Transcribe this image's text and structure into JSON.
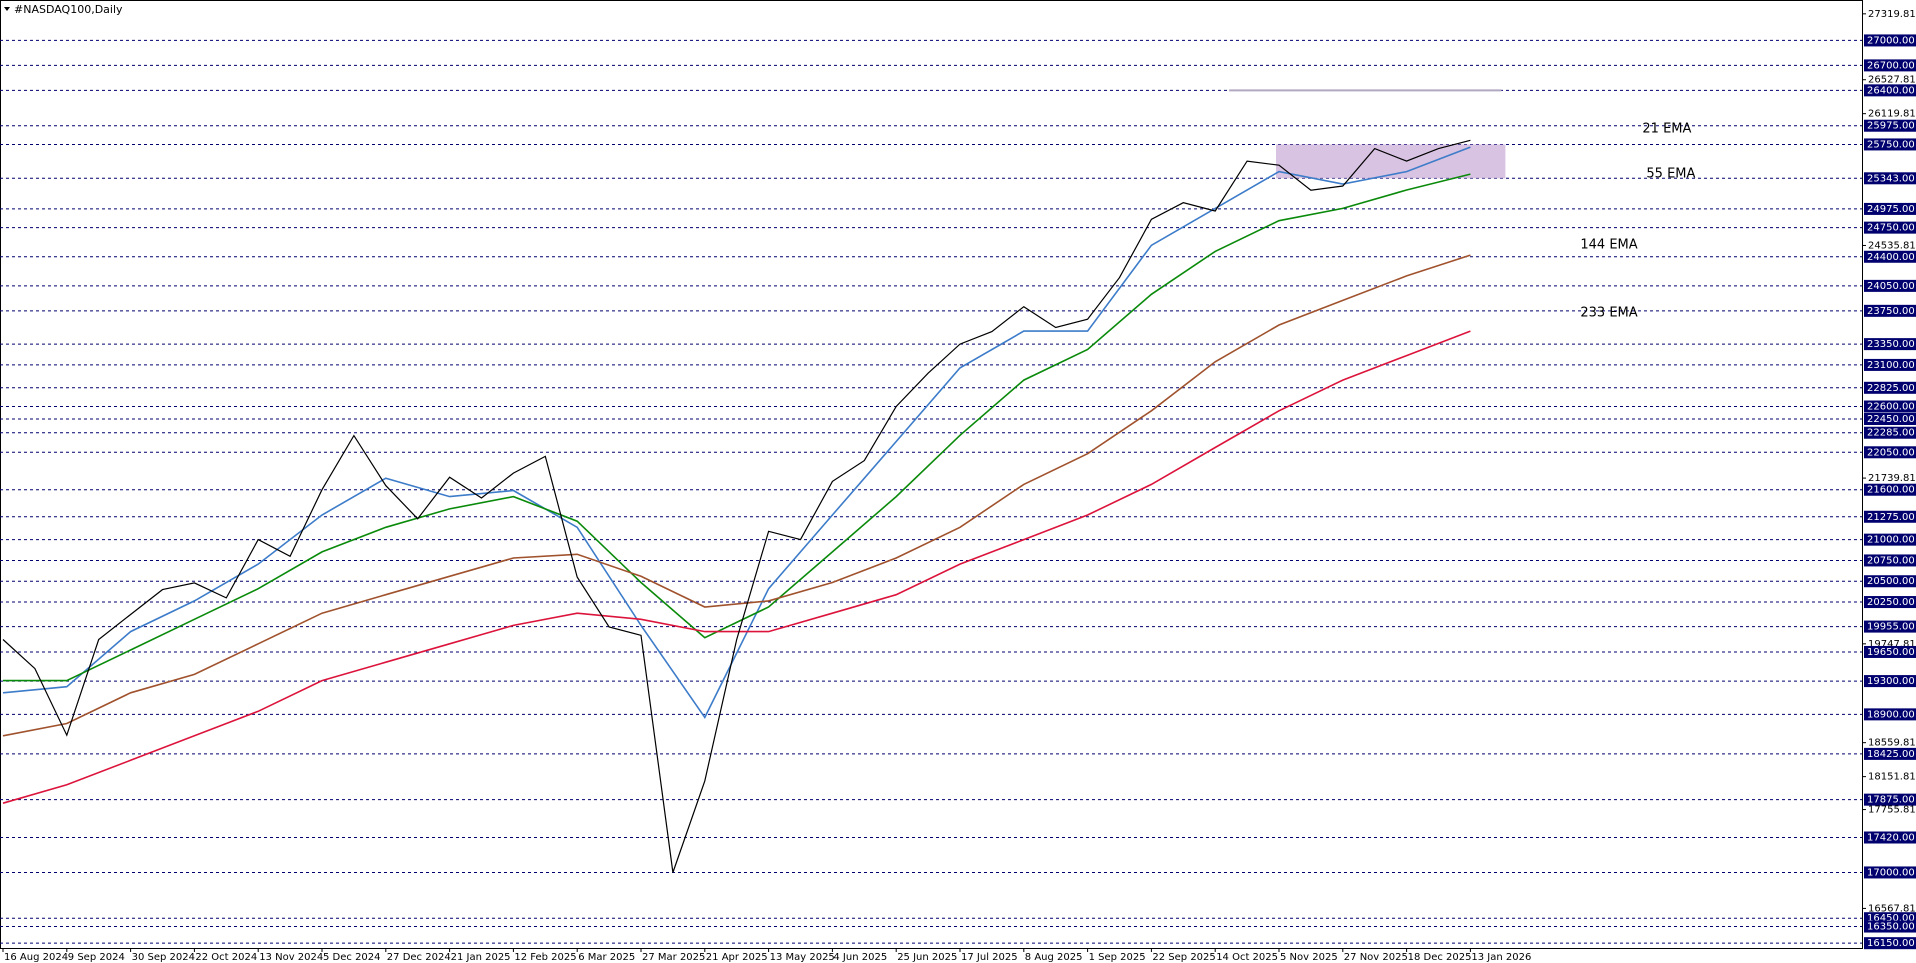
{
  "chart_data": {
    "type": "line",
    "title": "#NASDAQ100,Daily",
    "categories": [
      "16 Aug 2024",
      "9 Sep 2024",
      "30 Sep 2024",
      "22 Oct 2024",
      "13 Nov 2024",
      "5 Dec 2024",
      "27 Dec 2024",
      "21 Jan 2025",
      "12 Feb 2025",
      "6 Mar 2025",
      "27 Mar 2025",
      "21 Apr 2025",
      "13 May 2025",
      "4 Jun 2025",
      "25 Jun 2025",
      "17 Jul 2025",
      "8 Aug 2025",
      "1 Sep 2025",
      "22 Sep 2025",
      "14 Oct 2025",
      "5 Nov 2025",
      "27 Nov 2025",
      "18 Dec 2025",
      "13 Jan 2026"
    ],
    "close_series": {
      "color": "#000000",
      "values": [
        19800,
        19450,
        18650,
        19800,
        20100,
        20400,
        20480,
        20300,
        21000,
        20800,
        21600,
        22250,
        21650,
        21250,
        21750,
        21500,
        21800,
        22000,
        20550,
        19950,
        19850,
        17000,
        18100,
        19800,
        21100,
        21000,
        21700,
        21950,
        22600,
        23000,
        23350,
        23500,
        23800,
        23550,
        23650,
        24150,
        24850,
        25050,
        24950,
        25550,
        25500,
        25200,
        25250,
        25700,
        25550,
        25700,
        25800
      ]
    },
    "series": [
      {
        "name": "21 EMA",
        "color": "#3d7cc9",
        "label_color": "#6fa8dc",
        "values": [
          19159,
          19232,
          19895,
          20264,
          20706,
          21296,
          21738,
          21517,
          21591,
          21148,
          19969,
          18864,
          20411,
          21296,
          22180,
          23064,
          23507,
          23507,
          24538,
          24981,
          25423,
          25275,
          25423,
          25718
        ]
      },
      {
        "name": "55 EMA",
        "color": "#0a8a0a",
        "label_color": "#1e8c1e",
        "values": [
          19306,
          19306,
          19674,
          20043,
          20411,
          20853,
          21148,
          21369,
          21517,
          21222,
          20485,
          19822,
          20190,
          20853,
          21517,
          22254,
          22917,
          23285,
          23949,
          24465,
          24833,
          24981,
          25202,
          25393
        ]
      },
      {
        "name": "144 EMA",
        "color": "#a0522d",
        "label_color": "#a0522d",
        "values": [
          18643,
          18790,
          19159,
          19380,
          19748,
          20116,
          20338,
          20559,
          20779,
          20824,
          20559,
          20190,
          20264,
          20485,
          20779,
          21148,
          21664,
          22033,
          22549,
          23138,
          23580,
          23875,
          24170,
          24420
        ]
      },
      {
        "name": "233 EMA",
        "color": "#dc143c",
        "label_color": "#dc143c",
        "values": [
          17832,
          18053,
          18348,
          18643,
          18937,
          19306,
          19527,
          19748,
          19969,
          20116,
          20043,
          19895,
          19895,
          20116,
          20338,
          20706,
          21001,
          21296,
          21664,
          22107,
          22549,
          22917,
          23212,
          23507
        ]
      }
    ],
    "zone": {
      "ylim": [
        25343,
        25750
      ],
      "color": "#c9a9d6"
    },
    "resistance": {
      "value": 26400,
      "color": "#b0a8c0"
    },
    "ylim": [
      16092,
      27486
    ],
    "yticks": [
      27319.81,
      {
        "value": 27000,
        "label": "27000.00"
      },
      {
        "value": 26700,
        "label": "26700.00"
      },
      26527.81,
      {
        "value": 26400,
        "label": "26400.00"
      },
      26119.81,
      {
        "value": 25975,
        "label": "25975.00"
      },
      {
        "value": 25750,
        "label": "25750.00"
      },
      {
        "value": 25343,
        "label": "25343.00"
      },
      {
        "value": 24975,
        "label": "24975.00"
      },
      {
        "value": 24750,
        "label": "24750.00"
      },
      24535.81,
      {
        "value": 24400,
        "label": "24400.00"
      },
      {
        "value": 24050,
        "label": "24050.00"
      },
      {
        "value": 23750,
        "label": "23750.00"
      },
      {
        "value": 23350,
        "label": "23350.00"
      },
      {
        "value": 23100,
        "label": "23100.00"
      },
      {
        "value": 22825,
        "label": "22825.00"
      },
      {
        "value": 22600,
        "label": "22600.00"
      },
      {
        "value": 22450,
        "label": "22450.00"
      },
      {
        "value": 22285,
        "label": "22285.00"
      },
      {
        "value": 22050,
        "label": "22050.00"
      },
      21739.81,
      {
        "value": 21600,
        "label": "21600.00"
      },
      {
        "value": 21275,
        "label": "21275.00"
      },
      {
        "value": 21000,
        "label": "21000.00"
      },
      {
        "value": 20750,
        "label": "20750.00"
      },
      {
        "value": 20500,
        "label": "20500.00"
      },
      {
        "value": 20250,
        "label": "20250.00"
      },
      {
        "value": 19955,
        "label": "19955.00"
      },
      19747.81,
      {
        "value": 19650,
        "label": "19650.00"
      },
      {
        "value": 19300,
        "label": "19300.00"
      },
      {
        "value": 18900,
        "label": "18900.00"
      },
      18559.81,
      {
        "value": 18425,
        "label": "18425.00"
      },
      18151.81,
      {
        "value": 17875,
        "label": "17875.00"
      },
      17755.81,
      {
        "value": 17420,
        "label": "17420.00"
      },
      {
        "value": 17000,
        "label": "17000.00"
      },
      16567.81,
      {
        "value": 16450,
        "label": "16450.00"
      },
      {
        "value": 16350,
        "label": "16350.00"
      },
      {
        "value": 16150,
        "label": "16150.00"
      }
    ],
    "level_color": "#00006e",
    "grid": true
  }
}
